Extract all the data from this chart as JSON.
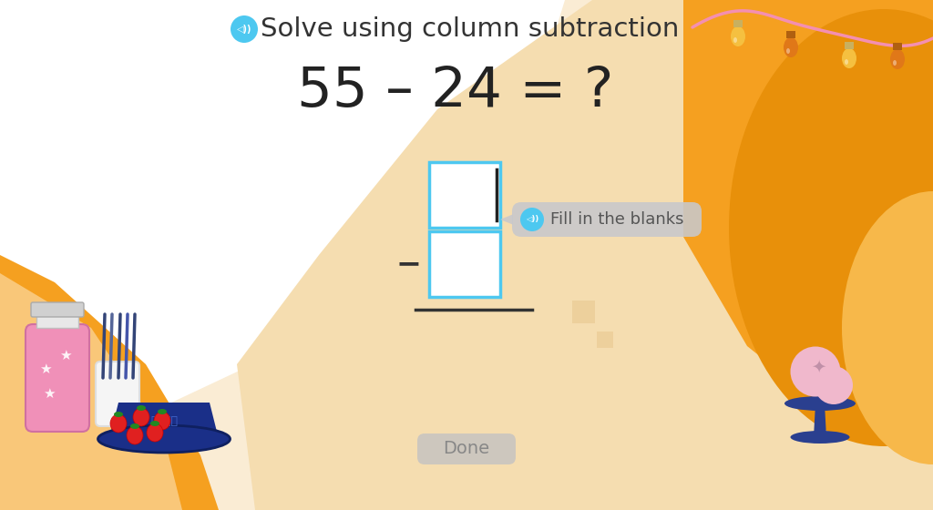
{
  "title": "Solve using column subtraction",
  "equation": "55 – 24 = ?",
  "bg_color_main": "#fefaf4",
  "box_border_color": "#4dc8f0",
  "box_fill_color": "#ffffff",
  "minus_sign": "−",
  "hint_text": "Fill in the blanks",
  "hint_bg": "#c8c8cc",
  "hint_text_color": "#555555",
  "done_text": "Done",
  "done_bg": "#c0c0c4",
  "done_text_color": "#888888",
  "title_color": "#333333",
  "equation_color": "#222222",
  "orange_main": "#f5a020",
  "orange_light": "#f7b84a",
  "orange_pale": "#f9c878",
  "cream": "#f5e0b8",
  "cream_light": "#faecd4",
  "white": "#ffffff",
  "pink_garland": "#f48fb1",
  "speaker_color": "#4dc8f0",
  "navy_blue": "#2a3f8f",
  "pink_ice": "#f0b8cc",
  "yellow_bulb": "#f5c040",
  "amber_bulb": "#e08020"
}
